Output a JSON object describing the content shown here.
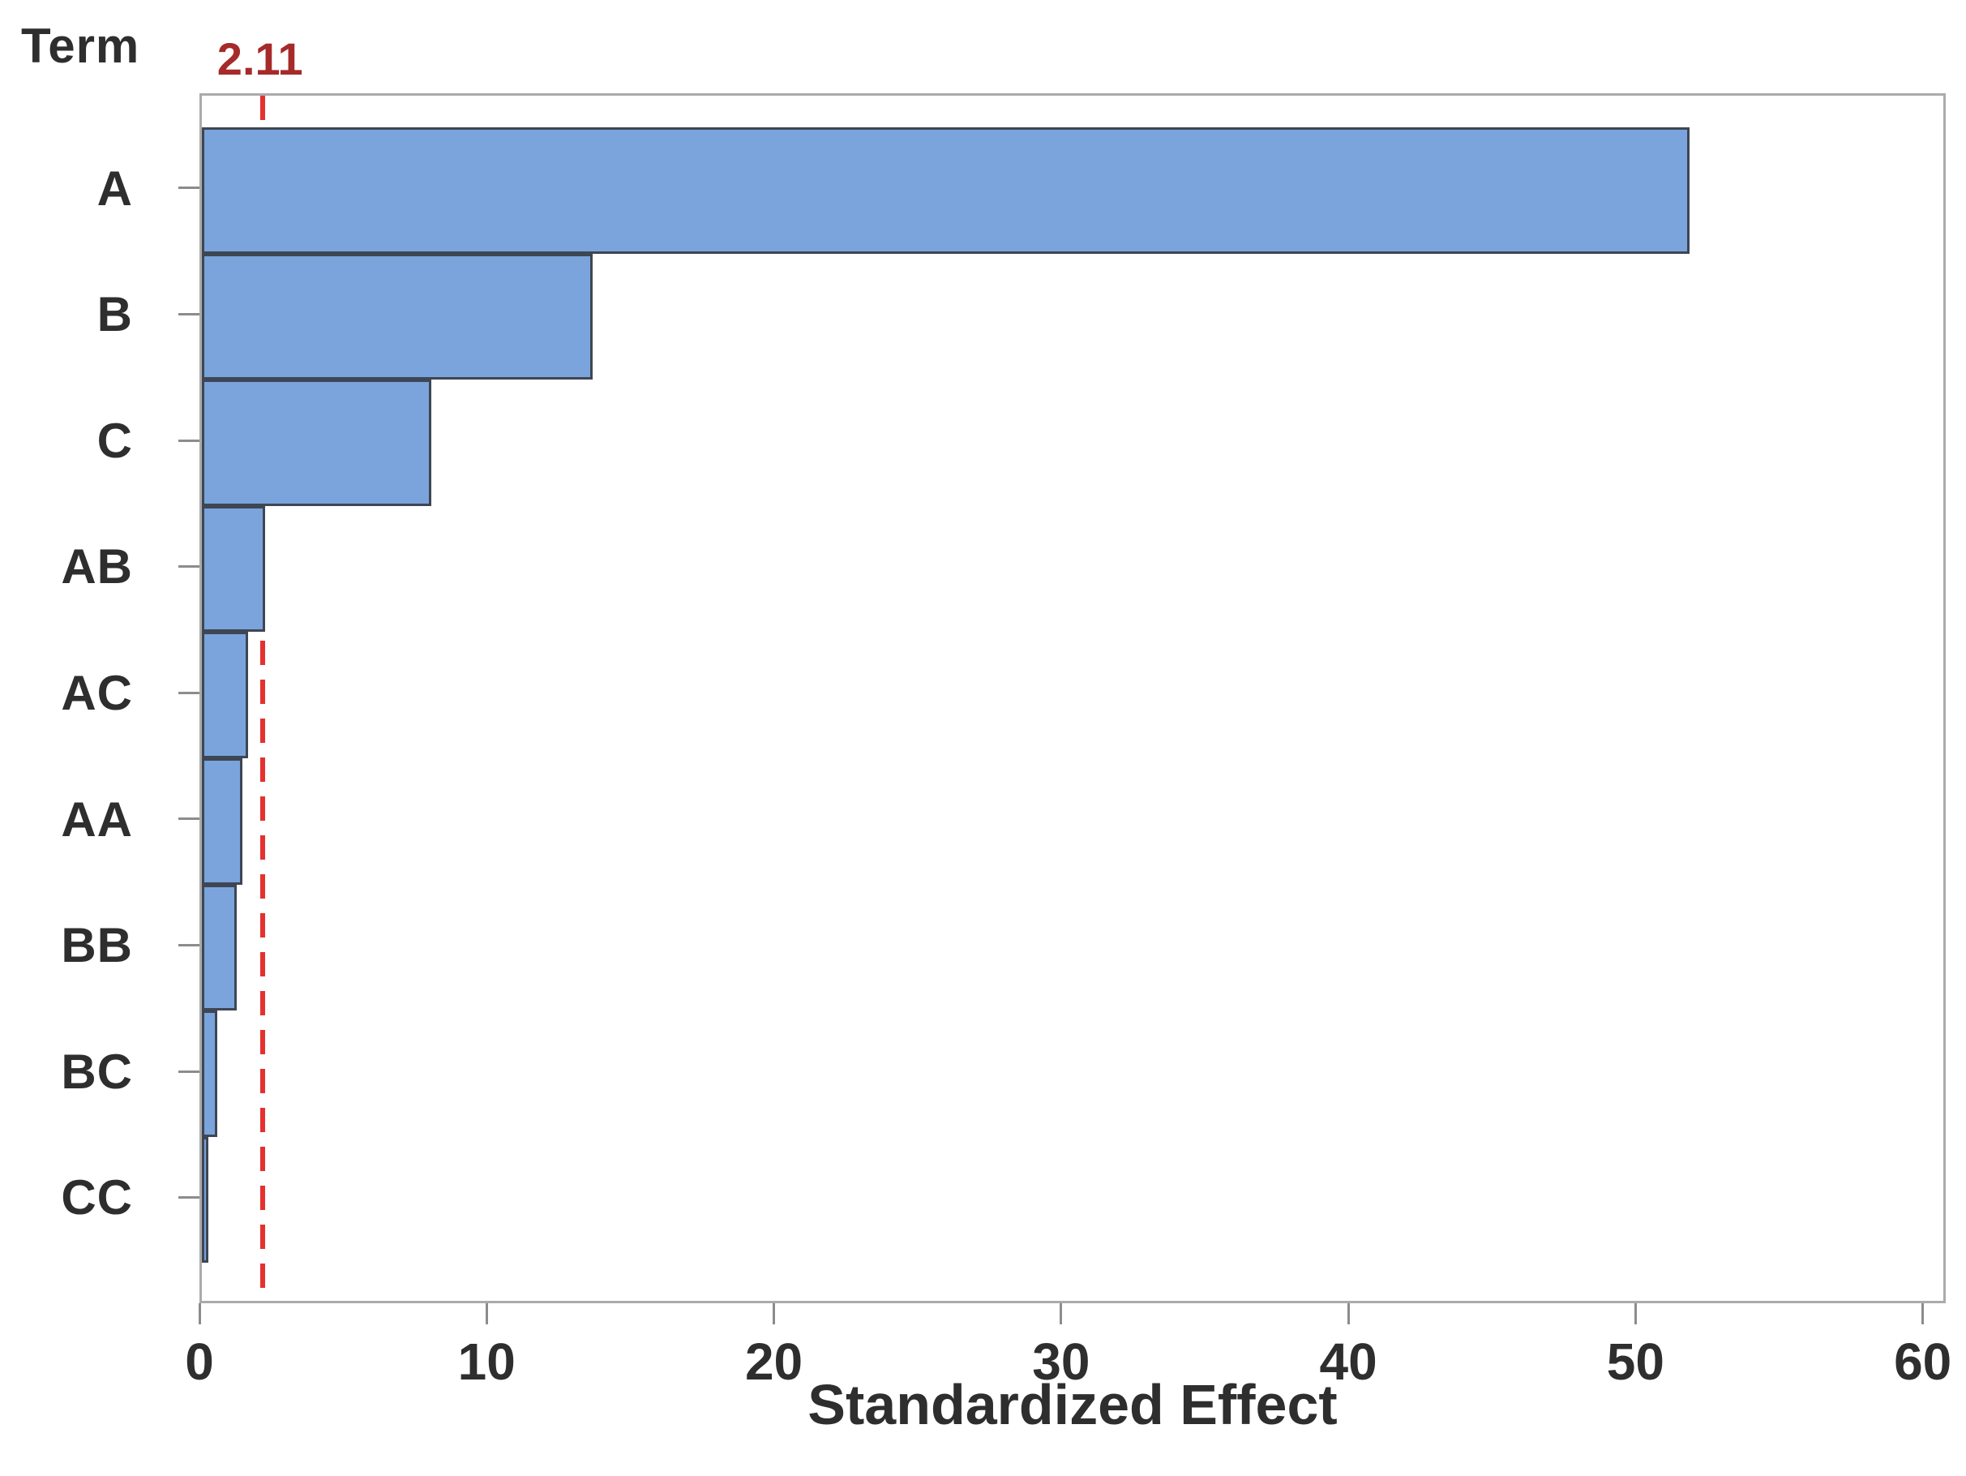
{
  "chart_data": {
    "type": "bar",
    "orientation": "horizontal",
    "y_axis_title": "Term",
    "xlabel": "Standardized Effect",
    "categories": [
      "A",
      "B",
      "C",
      "AB",
      "AC",
      "AA",
      "BB",
      "BC",
      "CC"
    ],
    "values": [
      51.8,
      13.6,
      8.0,
      2.2,
      1.6,
      1.4,
      1.2,
      0.55,
      0.2
    ],
    "x_ticks": [
      0,
      10,
      20,
      30,
      40,
      50,
      60
    ],
    "xlim": [
      0,
      60.8
    ],
    "grid": false,
    "legend": null,
    "reference_line": {
      "value": 2.11,
      "label": "2.11"
    },
    "colors": {
      "bar_fill": "#7AA4DB",
      "bar_border": "#3E4654",
      "reference_line": "#E53030",
      "reference_label": "#A62A2A",
      "frame": "#ABABAB",
      "tick": "#8C8C8C",
      "text": "#2E2E2E"
    }
  }
}
